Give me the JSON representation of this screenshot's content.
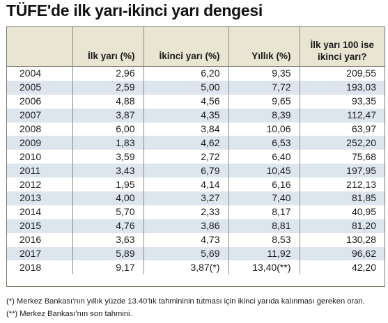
{
  "title": "TÜFE'de ilk yarı-ikinci yarı dengesi",
  "chart_data": {
    "type": "table",
    "columns": [
      "",
      "İlk yarı (%)",
      "İkinci yarı (%)",
      "Yıllık (%)",
      "İlk yarı 100 ise ikinci yarı?"
    ],
    "rows": [
      [
        "2004",
        "2,96",
        "6,20",
        "9,35",
        "209,55"
      ],
      [
        "2005",
        "2,59",
        "5,00",
        "7,72",
        "193,03"
      ],
      [
        "2006",
        "4,88",
        "4,56",
        "9,65",
        "93,35"
      ],
      [
        "2007",
        "3,87",
        "4,35",
        "8,39",
        "112,47"
      ],
      [
        "2008",
        "6,00",
        "3,84",
        "10,06",
        "63,97"
      ],
      [
        "2009",
        "1,83",
        "4,62",
        "6,53",
        "252,20"
      ],
      [
        "2010",
        "3,59",
        "2,72",
        "6,40",
        "75,68"
      ],
      [
        "2011",
        "3,43",
        "6,79",
        "10,45",
        "197,95"
      ],
      [
        "2012",
        "1,95",
        "4,14",
        "6,16",
        "212,13"
      ],
      [
        "2013",
        "4,00",
        "3,27",
        "7,40",
        "81,85"
      ],
      [
        "2014",
        "5,70",
        "2,33",
        "8,17",
        "40,95"
      ],
      [
        "2015",
        "4,76",
        "3,86",
        "8,81",
        "81,20"
      ],
      [
        "2016",
        "3,63",
        "4,73",
        "8,53",
        "130,28"
      ],
      [
        "2017",
        "5,89",
        "5,69",
        "11,92",
        "96,62"
      ],
      [
        "2018",
        "9,17",
        "3,87(*)",
        "13,40(**)",
        "42,20"
      ]
    ]
  },
  "notes": [
    "(*) Merkez Bankası'nın yıllık yüzde 13.40'lık tahmininin tutması için ikinci yarıda kalınması gereken oran.",
    "(**) Merkez Bankası'nın son tahmini."
  ],
  "colors": {
    "header_bg": "#e8e6d2",
    "stripe_bg": "#dde6ef",
    "border": "#8a8a7c"
  }
}
